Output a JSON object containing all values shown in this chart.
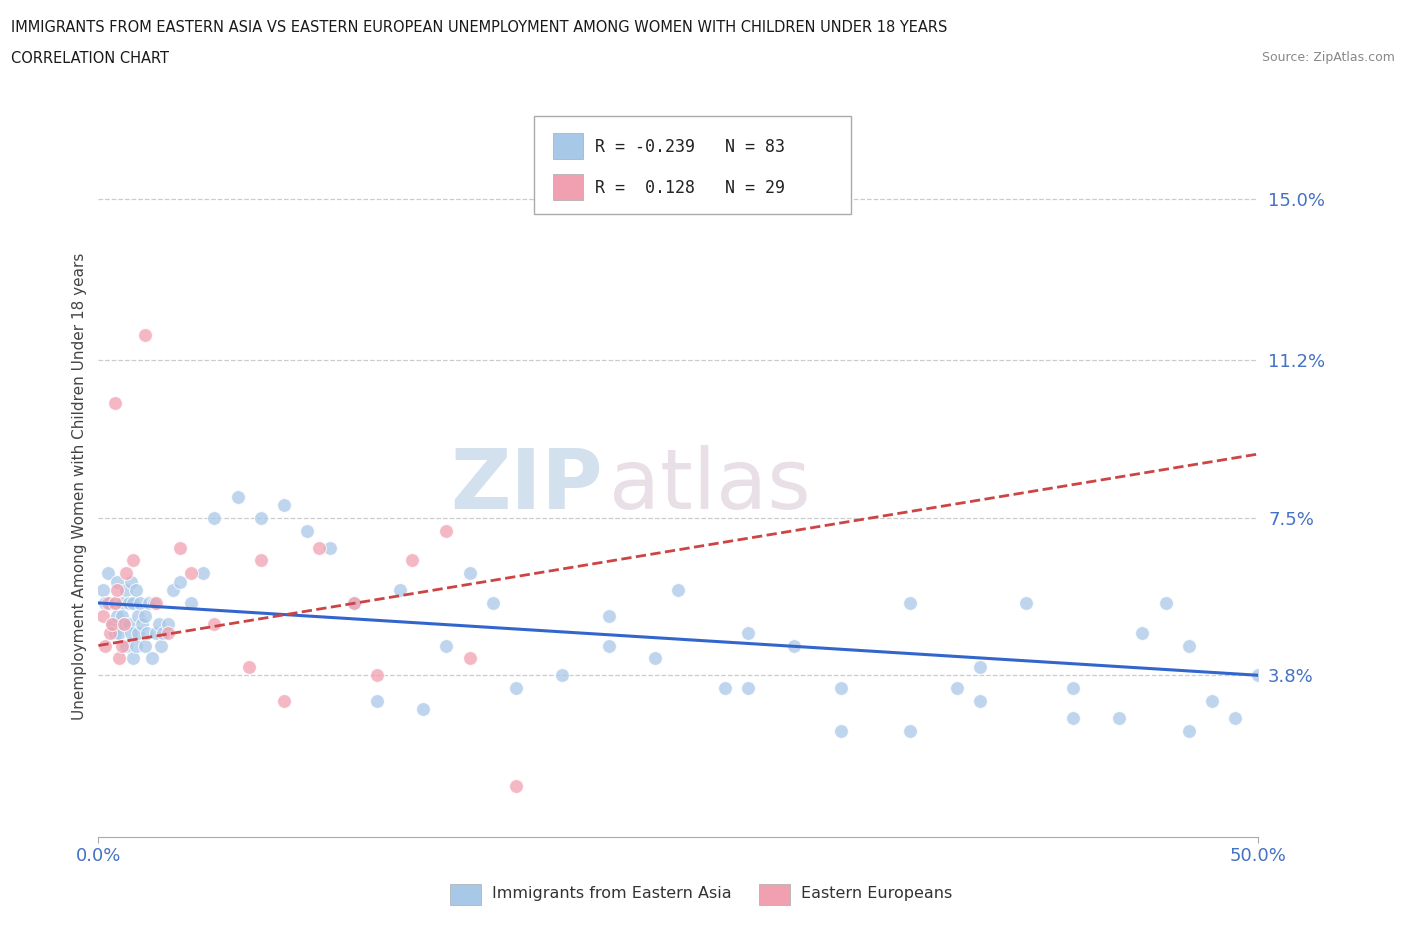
{
  "title_line1": "IMMIGRANTS FROM EASTERN ASIA VS EASTERN EUROPEAN UNEMPLOYMENT AMONG WOMEN WITH CHILDREN UNDER 18 YEARS",
  "title_line2": "CORRELATION CHART",
  "source": "Source: ZipAtlas.com",
  "ylabel": "Unemployment Among Women with Children Under 18 years",
  "xlim": [
    0.0,
    50.0
  ],
  "ylim": [
    0.0,
    16.5
  ],
  "yticks": [
    3.8,
    7.5,
    11.2,
    15.0
  ],
  "ytick_labels": [
    "3.8%",
    "7.5%",
    "11.2%",
    "15.0%"
  ],
  "xtick_positions": [
    0.0,
    50.0
  ],
  "xtick_labels": [
    "0.0%",
    "50.0%"
  ],
  "grid_color": "#cccccc",
  "background_color": "#ffffff",
  "legend_R1": "R = -0.239",
  "legend_N1": "N = 83",
  "legend_R2": "R =  0.128",
  "legend_N2": "N = 29",
  "color_asia": "#a8c8e8",
  "color_europe": "#f0a0b0",
  "color_trendline_asia": "#3366cc",
  "color_trendline_europe": "#cc4444",
  "trendline_asia_start": 5.5,
  "trendline_asia_end": 3.8,
  "trendline_europe_start": 4.5,
  "trendline_europe_end": 9.0,
  "watermark_zip": "ZIP",
  "watermark_atlas": "atlas",
  "scatter_asia_x": [
    0.2,
    0.3,
    0.4,
    0.5,
    0.6,
    0.7,
    0.7,
    0.8,
    0.8,
    0.9,
    1.0,
    1.0,
    1.1,
    1.2,
    1.2,
    1.3,
    1.3,
    1.4,
    1.4,
    1.5,
    1.5,
    1.6,
    1.6,
    1.7,
    1.7,
    1.8,
    1.9,
    2.0,
    2.0,
    2.1,
    2.2,
    2.3,
    2.4,
    2.5,
    2.6,
    2.7,
    2.8,
    3.0,
    3.2,
    3.5,
    4.0,
    4.5,
    5.0,
    6.0,
    7.0,
    8.0,
    9.0,
    10.0,
    11.0,
    12.0,
    13.0,
    14.0,
    15.0,
    16.0,
    17.0,
    18.0,
    20.0,
    22.0,
    24.0,
    25.0,
    27.0,
    28.0,
    30.0,
    32.0,
    35.0,
    37.0,
    38.0,
    40.0,
    42.0,
    44.0,
    45.0,
    46.0,
    47.0,
    48.0,
    49.0,
    50.0,
    22.0,
    28.0,
    32.0,
    35.0,
    38.0,
    42.0,
    47.0
  ],
  "scatter_asia_y": [
    5.8,
    5.5,
    6.2,
    5.5,
    5.0,
    5.5,
    4.8,
    6.0,
    5.2,
    4.8,
    5.5,
    5.2,
    5.0,
    4.5,
    5.8,
    5.0,
    5.5,
    4.8,
    6.0,
    4.2,
    5.5,
    4.5,
    5.8,
    4.8,
    5.2,
    5.5,
    5.0,
    4.5,
    5.2,
    4.8,
    5.5,
    4.2,
    5.5,
    4.8,
    5.0,
    4.5,
    4.8,
    5.0,
    5.8,
    6.0,
    5.5,
    6.2,
    7.5,
    8.0,
    7.5,
    7.8,
    7.2,
    6.8,
    5.5,
    3.2,
    5.8,
    3.0,
    4.5,
    6.2,
    5.5,
    3.5,
    3.8,
    5.2,
    4.2,
    5.8,
    3.5,
    4.8,
    4.5,
    3.5,
    5.5,
    3.5,
    4.0,
    5.5,
    3.5,
    2.8,
    4.8,
    5.5,
    4.5,
    3.2,
    2.8,
    3.8,
    4.5,
    3.5,
    2.5,
    2.5,
    3.2,
    2.8,
    2.5
  ],
  "scatter_europe_x": [
    0.2,
    0.3,
    0.4,
    0.5,
    0.6,
    0.7,
    0.7,
    0.8,
    0.9,
    1.0,
    1.1,
    1.2,
    1.5,
    2.0,
    2.5,
    3.0,
    3.5,
    4.0,
    5.0,
    6.5,
    7.0,
    8.0,
    9.5,
    11.0,
    12.0,
    13.5,
    15.0,
    16.0,
    18.0
  ],
  "scatter_europe_y": [
    5.2,
    4.5,
    5.5,
    4.8,
    5.0,
    10.2,
    5.5,
    5.8,
    4.2,
    4.5,
    5.0,
    6.2,
    6.5,
    11.8,
    5.5,
    4.8,
    6.8,
    6.2,
    5.0,
    4.0,
    6.5,
    3.2,
    6.8,
    5.5,
    3.8,
    6.5,
    7.2,
    4.2,
    1.2
  ]
}
